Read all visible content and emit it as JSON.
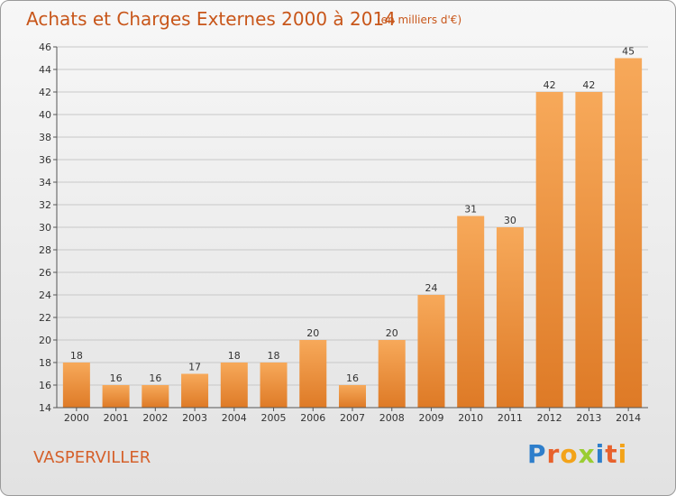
{
  "header": {
    "title": "Achats et Charges Externes 2000 à 2014",
    "subtitle": "(en milliers d'€)"
  },
  "footer": {
    "place": "VASPERVILLER",
    "logo": "Proxiti",
    "logo_colors": [
      "#2e7ecb",
      "#e8612c",
      "#f3a319",
      "#9acd32",
      "#2e7ecb",
      "#e8612c",
      "#f3a319"
    ]
  },
  "colors": {
    "bar_top": "#f7a95a",
    "bar_bottom": "#de7a26",
    "grid": "#c8c8c8",
    "axis": "#555555",
    "text": "#333333"
  },
  "chart_data": {
    "type": "bar",
    "categories": [
      "2000",
      "2001",
      "2002",
      "2003",
      "2004",
      "2005",
      "2006",
      "2007",
      "2008",
      "2009",
      "2010",
      "2011",
      "2012",
      "2013",
      "2014"
    ],
    "values": [
      18,
      16,
      16,
      17,
      18,
      18,
      20,
      16,
      20,
      24,
      31,
      30,
      42,
      42,
      45
    ],
    "ylim": [
      14,
      46
    ],
    "yticks": [
      14,
      16,
      18,
      20,
      22,
      24,
      26,
      28,
      30,
      32,
      34,
      36,
      38,
      40,
      42,
      44,
      46
    ],
    "grid": true,
    "title": "Achats et Charges Externes 2000 à 2014",
    "xlabel": "",
    "ylabel": ""
  }
}
